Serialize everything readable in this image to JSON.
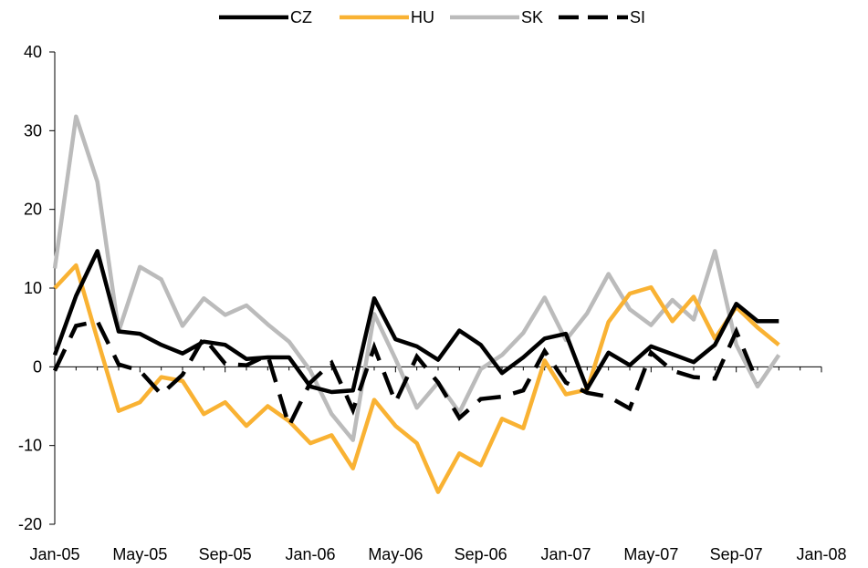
{
  "chart_data": {
    "type": "line",
    "title": "",
    "xlabel": "",
    "ylabel": "",
    "ylim": [
      -20,
      40
    ],
    "yticks": [
      -20,
      -10,
      0,
      10,
      20,
      30,
      40
    ],
    "xticks": [
      "Jan-05",
      "May-05",
      "Sep-05",
      "Jan-06",
      "May-06",
      "Sep-06",
      "Jan-07",
      "May-07",
      "Sep-07",
      "Jan-08"
    ],
    "grid": false,
    "legend_position": "top",
    "x": [
      "Jan-05",
      "Feb-05",
      "Mar-05",
      "Apr-05",
      "May-05",
      "Jun-05",
      "Jul-05",
      "Aug-05",
      "Sep-05",
      "Oct-05",
      "Nov-05",
      "Dec-05",
      "Jan-06",
      "Feb-06",
      "Mar-06",
      "Apr-06",
      "May-06",
      "Jun-06",
      "Jul-06",
      "Aug-06",
      "Sep-06",
      "Oct-06",
      "Nov-06",
      "Dec-06",
      "Jan-07",
      "Feb-07",
      "Mar-07",
      "Apr-07",
      "May-07",
      "Jun-07",
      "Jul-07",
      "Aug-07",
      "Sep-07",
      "Oct-07",
      "Nov-07",
      "Dec-07"
    ],
    "series": [
      {
        "name": "CZ",
        "color": "#000000",
        "style": "solid",
        "values": [
          1.5,
          9.0,
          14.7,
          4.5,
          4.2,
          2.8,
          1.7,
          3.2,
          2.8,
          1.0,
          1.2,
          1.2,
          -2.5,
          -3.2,
          -3.0,
          8.7,
          3.5,
          2.6,
          0.9,
          4.6,
          2.8,
          -0.8,
          1.2,
          3.6,
          4.2,
          -2.8,
          1.8,
          0.2,
          2.6,
          1.6,
          0.6,
          2.8,
          8.0,
          5.8,
          5.8,
          null
        ]
      },
      {
        "name": "HU",
        "color": "#F9B233",
        "style": "solid",
        "values": [
          10.0,
          12.9,
          3.5,
          -5.6,
          -4.5,
          -1.3,
          -1.8,
          -6.0,
          -4.5,
          -7.5,
          -5.0,
          -6.9,
          -9.7,
          -8.7,
          -12.9,
          -4.2,
          -7.5,
          -9.7,
          -15.9,
          -11.0,
          -12.5,
          -6.6,
          -7.8,
          0.8,
          -3.5,
          -2.9,
          5.7,
          9.3,
          10.1,
          5.8,
          8.9,
          3.6,
          7.6,
          5.0,
          2.8,
          null
        ]
      },
      {
        "name": "SK",
        "color": "#BBBBBB",
        "style": "solid",
        "values": [
          12.5,
          31.8,
          23.5,
          4.5,
          12.7,
          11.1,
          5.2,
          8.7,
          6.6,
          7.8,
          5.4,
          3.2,
          -0.5,
          -6.0,
          -9.3,
          6.7,
          1.0,
          -5.2,
          -2.0,
          -5.8,
          -0.3,
          1.5,
          4.3,
          8.8,
          3.4,
          6.8,
          11.8,
          7.3,
          5.3,
          8.5,
          6.0,
          14.7,
          2.8,
          -2.5,
          1.5,
          null
        ]
      },
      {
        "name": "SI",
        "color": "#000000",
        "style": "dashed",
        "values": [
          -0.5,
          5.2,
          5.8,
          0.3,
          -0.5,
          -3.5,
          -1.0,
          3.7,
          0.4,
          0.2,
          1.5,
          -7.5,
          -2.0,
          0.5,
          -5.5,
          2.5,
          -4.5,
          1.3,
          -2.0,
          -6.5,
          -4.1,
          -3.8,
          -3.0,
          2.0,
          -2.0,
          -3.3,
          -3.8,
          -5.3,
          1.8,
          -0.5,
          -1.3,
          -1.5,
          4.5,
          -2.0,
          null,
          null
        ]
      }
    ]
  }
}
